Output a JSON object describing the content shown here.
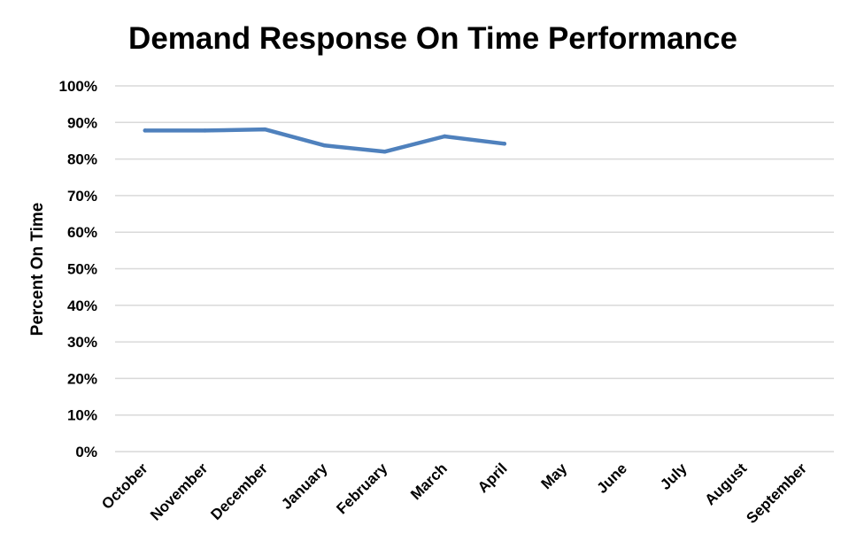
{
  "chart_data": {
    "type": "line",
    "title": "Demand Response On Time Performance",
    "xlabel": "",
    "ylabel": "Percent On Time",
    "categories": [
      "October",
      "November",
      "December",
      "January",
      "February",
      "March",
      "April",
      "May",
      "June",
      "July",
      "August",
      "September"
    ],
    "series": [
      {
        "values": [
          0.878,
          0.878,
          0.881,
          0.837,
          0.82,
          0.862,
          0.842,
          null,
          null,
          null,
          null,
          null
        ],
        "color": "#4f81bd"
      }
    ],
    "ylim": [
      0,
      1
    ],
    "yticks": [
      "0%",
      "10%",
      "20%",
      "30%",
      "40%",
      "50%",
      "60%",
      "70%",
      "80%",
      "90%",
      "100%"
    ],
    "grid": true,
    "legend": "none"
  }
}
